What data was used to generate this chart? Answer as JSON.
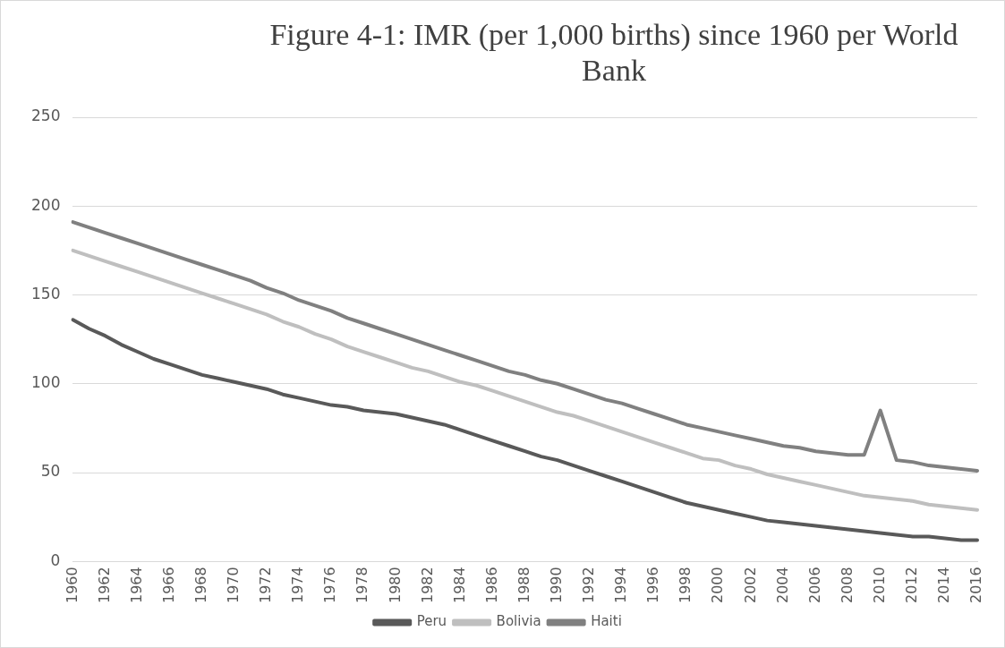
{
  "chart_data": {
    "type": "line",
    "title": "Figure 4-1: IMR (per 1,000 births) since 1960 per World Bank",
    "categories": [
      "1960",
      null,
      "1962",
      null,
      "1964",
      null,
      "1966",
      null,
      "1968",
      null,
      "1970",
      null,
      "1972",
      null,
      "1974",
      null,
      "1976",
      null,
      "1978",
      null,
      "1980",
      null,
      "1982",
      null,
      "1984",
      null,
      "1986",
      null,
      "1988",
      null,
      "1990",
      null,
      "1992",
      null,
      "1994",
      null,
      "1996",
      null,
      "1998",
      null,
      "2000",
      null,
      "2002",
      null,
      "2004",
      null,
      "2006",
      null,
      "2008",
      null,
      "2010",
      null,
      "2012",
      null,
      "2014",
      null,
      "2016"
    ],
    "series": [
      {
        "name": "Peru",
        "color": "#595959",
        "values": [
          136,
          131,
          127,
          122,
          118,
          114,
          111,
          108,
          105,
          103,
          101,
          99,
          97,
          94,
          92,
          90,
          88,
          87,
          85,
          84,
          83,
          81,
          79,
          77,
          74,
          71,
          68,
          65,
          62,
          59,
          57,
          54,
          51,
          48,
          45,
          42,
          39,
          36,
          33,
          31,
          29,
          27,
          25,
          23,
          22,
          21,
          20,
          19,
          18,
          17,
          16,
          15,
          14,
          14,
          13,
          12,
          12
        ]
      },
      {
        "name": "Bolivia",
        "color": "#bfbfbf",
        "values": [
          175,
          172,
          169,
          166,
          163,
          160,
          157,
          154,
          151,
          148,
          145,
          142,
          139,
          135,
          132,
          128,
          125,
          121,
          118,
          115,
          112,
          109,
          107,
          104,
          101,
          99,
          96,
          93,
          90,
          87,
          84,
          82,
          79,
          76,
          73,
          70,
          67,
          64,
          61,
          58,
          57,
          54,
          52,
          49,
          47,
          45,
          43,
          41,
          39,
          37,
          36,
          35,
          34,
          32,
          31,
          30,
          29
        ]
      },
      {
        "name": "Haiti",
        "color": "#808080",
        "values": [
          191,
          188,
          185,
          182,
          179,
          176,
          173,
          170,
          167,
          164,
          161,
          158,
          154,
          151,
          147,
          144,
          141,
          137,
          134,
          131,
          128,
          125,
          122,
          119,
          116,
          113,
          110,
          107,
          105,
          102,
          100,
          97,
          94,
          91,
          89,
          86,
          83,
          80,
          77,
          75,
          73,
          71,
          69,
          67,
          65,
          64,
          62,
          61,
          60,
          60,
          85,
          57,
          56,
          54,
          53,
          52,
          51
        ]
      }
    ],
    "ylim": [
      0,
      250
    ],
    "yticks": [
      0,
      50,
      100,
      150,
      200,
      250
    ],
    "grid": "y",
    "legend": "bottom",
    "marker": "none",
    "line_style": "solid"
  }
}
